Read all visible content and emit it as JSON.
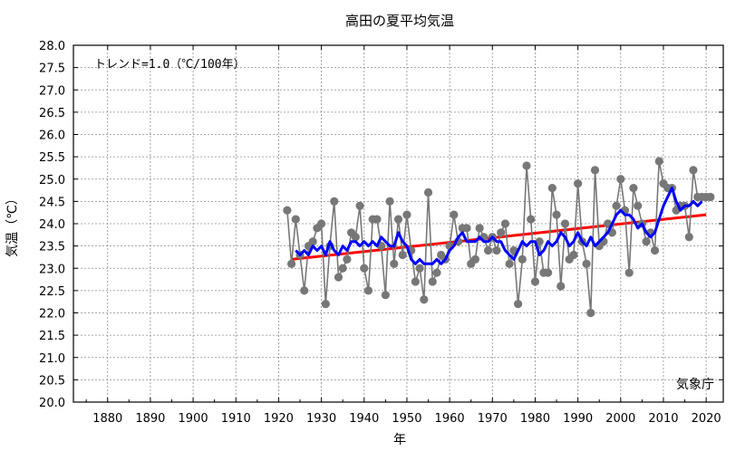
{
  "chart_data": {
    "type": "line",
    "title": "高田の夏平均気温",
    "xlabel": "年",
    "ylabel": "気温（℃）",
    "annotation": "トレンド=1.0（℃/100年）",
    "credit": "気象庁",
    "xlim": [
      1872,
      2024
    ],
    "ylim": [
      20.0,
      28.0
    ],
    "x_ticks": [
      1880,
      1890,
      1900,
      1910,
      1920,
      1930,
      1940,
      1950,
      1960,
      1970,
      1980,
      1990,
      2000,
      2010,
      2020
    ],
    "y_ticks": [
      "20.0",
      "20.5",
      "21.0",
      "21.5",
      "22.0",
      "22.5",
      "23.0",
      "23.5",
      "24.0",
      "24.5",
      "25.0",
      "25.5",
      "26.0",
      "26.5",
      "27.0",
      "27.5",
      "28.0"
    ],
    "grid": true,
    "colors": {
      "annual": "#777777",
      "moving_average": "#0000ff",
      "trend": "#ff0000"
    },
    "series": [
      {
        "key": "annual",
        "x": [
          1922,
          1923,
          1924,
          1925,
          1926,
          1927,
          1928,
          1929,
          1930,
          1931,
          1932,
          1933,
          1934,
          1935,
          1936,
          1937,
          1938,
          1939,
          1940,
          1941,
          1942,
          1943,
          1944,
          1945,
          1946,
          1947,
          1948,
          1949,
          1950,
          1951,
          1952,
          1953,
          1954,
          1955,
          1956,
          1957,
          1958,
          1959,
          1960,
          1961,
          1962,
          1963,
          1964,
          1965,
          1966,
          1967,
          1968,
          1969,
          1970,
          1971,
          1972,
          1973,
          1974,
          1975,
          1976,
          1977,
          1978,
          1979,
          1980,
          1981,
          1982,
          1983,
          1984,
          1985,
          1986,
          1987,
          1988,
          1989,
          1990,
          1991,
          1992,
          1993,
          1994,
          1995,
          1996,
          1997,
          1998,
          1999,
          2000,
          2001,
          2002,
          2003,
          2004,
          2005,
          2006,
          2007,
          2008,
          2009,
          2010,
          2011,
          2012,
          2013,
          2014,
          2015,
          2016,
          2017,
          2018,
          2019,
          2020,
          2021
        ],
        "y": [
          24.3,
          23.1,
          24.1,
          23.3,
          22.5,
          23.5,
          23.6,
          23.9,
          24.0,
          22.2,
          23.5,
          24.5,
          22.8,
          23.0,
          23.2,
          23.8,
          23.7,
          24.4,
          23.0,
          22.5,
          24.1,
          24.1,
          23.5,
          22.4,
          24.5,
          23.1,
          24.1,
          23.3,
          24.2,
          23.4,
          22.7,
          23.0,
          22.3,
          24.7,
          22.7,
          22.9,
          23.3,
          23.2,
          23.5,
          24.2,
          23.6,
          23.9,
          23.9,
          23.1,
          23.2,
          23.9,
          23.7,
          23.4,
          23.7,
          23.4,
          23.8,
          24.0,
          23.1,
          23.4,
          22.2,
          23.2,
          25.3,
          24.1,
          22.7,
          23.6,
          22.9,
          22.9,
          24.8,
          24.2,
          22.6,
          24.0,
          23.2,
          23.3,
          24.9,
          23.6,
          23.1,
          22.0,
          25.2,
          23.5,
          23.6,
          24.0,
          23.8,
          24.4,
          25.0,
          24.3,
          22.9,
          24.8,
          24.4,
          24.0,
          23.6,
          23.8,
          23.4,
          25.4,
          24.9,
          24.8,
          24.8,
          24.3,
          24.4,
          24.4,
          23.7,
          25.2,
          24.6,
          24.6,
          24.6,
          24.6
        ]
      },
      {
        "key": "moving_average",
        "x": [
          1924,
          1925,
          1926,
          1927,
          1928,
          1929,
          1930,
          1931,
          1932,
          1933,
          1934,
          1935,
          1936,
          1937,
          1938,
          1939,
          1940,
          1941,
          1942,
          1943,
          1944,
          1945,
          1946,
          1947,
          1948,
          1949,
          1950,
          1951,
          1952,
          1953,
          1954,
          1955,
          1956,
          1957,
          1958,
          1959,
          1960,
          1961,
          1962,
          1963,
          1964,
          1965,
          1966,
          1967,
          1968,
          1969,
          1970,
          1971,
          1972,
          1973,
          1974,
          1975,
          1976,
          1977,
          1978,
          1979,
          1980,
          1981,
          1982,
          1983,
          1984,
          1985,
          1986,
          1987,
          1988,
          1989,
          1990,
          1991,
          1992,
          1993,
          1994,
          1995,
          1996,
          1997,
          1998,
          1999,
          2000,
          2001,
          2002,
          2003,
          2004,
          2005,
          2006,
          2007,
          2008,
          2009,
          2010,
          2011,
          2012,
          2013,
          2014,
          2015,
          2016,
          2017,
          2018,
          2019
        ],
        "y": [
          23.4,
          23.3,
          23.4,
          23.3,
          23.5,
          23.4,
          23.5,
          23.3,
          23.6,
          23.4,
          23.3,
          23.5,
          23.4,
          23.6,
          23.6,
          23.5,
          23.6,
          23.5,
          23.6,
          23.5,
          23.7,
          23.6,
          23.5,
          23.5,
          23.8,
          23.6,
          23.5,
          23.2,
          23.1,
          23.2,
          23.1,
          23.1,
          23.1,
          23.2,
          23.1,
          23.2,
          23.4,
          23.5,
          23.7,
          23.8,
          23.6,
          23.6,
          23.6,
          23.7,
          23.6,
          23.6,
          23.7,
          23.6,
          23.6,
          23.4,
          23.3,
          23.2,
          23.4,
          23.6,
          23.5,
          23.6,
          23.6,
          23.3,
          23.4,
          23.6,
          23.5,
          23.6,
          23.8,
          23.7,
          23.5,
          23.6,
          23.8,
          23.6,
          23.5,
          23.7,
          23.5,
          23.6,
          23.7,
          23.8,
          24.0,
          24.2,
          24.3,
          24.2,
          24.2,
          24.1,
          23.9,
          24.0,
          23.8,
          23.7,
          23.8,
          24.1,
          24.4,
          24.6,
          24.8,
          24.5,
          24.3,
          24.4,
          24.4,
          24.5,
          24.4,
          24.5
        ]
      },
      {
        "key": "trend",
        "x": [
          1923,
          2020
        ],
        "y": [
          23.2,
          24.2
        ]
      }
    ]
  }
}
